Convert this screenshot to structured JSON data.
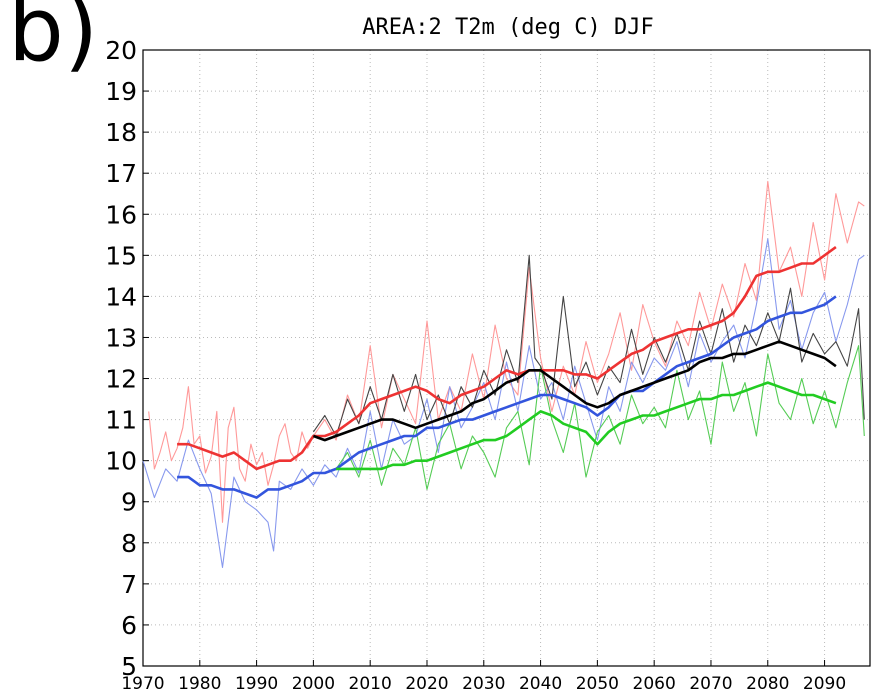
{
  "panel_label": "b)",
  "chart_data": {
    "type": "line",
    "title": "AREA:2 T2m (deg C) DJF",
    "xlabel": "",
    "ylabel": "",
    "xlim": [
      1970,
      2098
    ],
    "ylim": [
      5,
      20
    ],
    "grid": true,
    "xticks": [
      1970,
      1980,
      1990,
      2000,
      2010,
      2020,
      2030,
      2040,
      2050,
      2060,
      2070,
      2080,
      2090
    ],
    "yticks": [
      5,
      6,
      7,
      8,
      9,
      10,
      11,
      12,
      13,
      14,
      15,
      16,
      17,
      18,
      19,
      20
    ],
    "series": [
      {
        "color": "#ff9999",
        "style": "annual",
        "x": [
          1971,
          1972,
          1973,
          1974,
          1975,
          1976,
          1977,
          1978,
          1979,
          1980,
          1981,
          1982,
          1983,
          1984,
          1985,
          1986,
          1987,
          1988,
          1989,
          1990,
          1991,
          1992,
          1993,
          1994,
          1995,
          1996,
          1997,
          1998,
          1999,
          2000,
          2002,
          2004,
          2006,
          2008,
          2010,
          2012,
          2014,
          2016,
          2018,
          2020,
          2022,
          2024,
          2026,
          2028,
          2030,
          2032,
          2034,
          2036,
          2038,
          2040,
          2042,
          2044,
          2046,
          2048,
          2050,
          2052,
          2054,
          2056,
          2058,
          2060,
          2062,
          2064,
          2066,
          2068,
          2070,
          2072,
          2074,
          2076,
          2078,
          2080,
          2082,
          2084,
          2086,
          2088,
          2090,
          2092,
          2094,
          2096,
          2097
        ],
        "y": [
          11.2,
          9.8,
          10.2,
          10.7,
          10.0,
          10.3,
          10.8,
          11.8,
          10.4,
          10.6,
          9.7,
          10.1,
          11.2,
          8.5,
          10.8,
          11.3,
          9.8,
          9.5,
          10.4,
          9.9,
          10.2,
          9.4,
          9.9,
          10.6,
          10.9,
          10.2,
          10.0,
          10.7,
          10.3,
          10.6,
          11.0,
          10.5,
          11.6,
          10.9,
          12.8,
          10.8,
          12.1,
          11.5,
          10.9,
          13.4,
          11.0,
          11.8,
          11.2,
          12.6,
          11.5,
          13.3,
          12.0,
          11.6,
          14.7,
          12.5,
          11.2,
          12.3,
          11.6,
          12.9,
          11.9,
          12.6,
          13.6,
          12.2,
          13.8,
          12.9,
          12.3,
          13.4,
          12.8,
          14.1,
          13.2,
          14.3,
          13.5,
          14.8,
          13.9,
          16.8,
          14.6,
          15.2,
          14.0,
          15.8,
          14.4,
          16.5,
          15.3,
          16.3,
          16.2
        ]
      },
      {
        "color": "#8899ee",
        "style": "annual",
        "x": [
          1970,
          1972,
          1974,
          1976,
          1978,
          1980,
          1982,
          1984,
          1986,
          1988,
          1990,
          1992,
          1993,
          1994,
          1996,
          1998,
          2000,
          2002,
          2004,
          2006,
          2008,
          2010,
          2012,
          2014,
          2016,
          2018,
          2020,
          2022,
          2024,
          2026,
          2028,
          2030,
          2032,
          2034,
          2036,
          2038,
          2040,
          2042,
          2044,
          2046,
          2048,
          2050,
          2052,
          2054,
          2056,
          2058,
          2060,
          2062,
          2064,
          2066,
          2068,
          2070,
          2072,
          2074,
          2076,
          2078,
          2080,
          2082,
          2084,
          2086,
          2088,
          2090,
          2092,
          2094,
          2096,
          2097
        ],
        "y": [
          10.0,
          9.1,
          9.8,
          9.5,
          10.5,
          9.8,
          9.2,
          7.4,
          9.6,
          9.0,
          8.8,
          8.5,
          7.8,
          9.5,
          9.3,
          9.8,
          9.4,
          9.9,
          9.6,
          10.3,
          9.7,
          11.2,
          9.8,
          11.0,
          10.4,
          10.6,
          11.5,
          10.2,
          11.8,
          10.8,
          11.3,
          11.9,
          11.0,
          12.4,
          11.2,
          12.8,
          11.5,
          11.9,
          11.0,
          12.3,
          11.4,
          10.5,
          11.8,
          11.2,
          12.4,
          11.9,
          12.5,
          12.2,
          12.9,
          11.8,
          13.1,
          12.4,
          12.9,
          13.3,
          12.5,
          13.8,
          15.4,
          13.2,
          13.9,
          12.7,
          13.6,
          14.1,
          12.9,
          13.8,
          14.9,
          15.0
        ]
      },
      {
        "color": "#55cc55",
        "style": "annual",
        "x": [
          2004,
          2006,
          2008,
          2010,
          2012,
          2014,
          2016,
          2018,
          2020,
          2022,
          2024,
          2026,
          2028,
          2030,
          2032,
          2034,
          2036,
          2038,
          2040,
          2042,
          2044,
          2046,
          2048,
          2050,
          2052,
          2054,
          2056,
          2058,
          2060,
          2062,
          2064,
          2066,
          2068,
          2070,
          2072,
          2074,
          2076,
          2078,
          2080,
          2082,
          2084,
          2086,
          2088,
          2090,
          2092,
          2094,
          2096,
          2097
        ],
        "y": [
          9.8,
          10.2,
          9.6,
          10.5,
          9.4,
          10.3,
          9.9,
          10.8,
          9.3,
          10.4,
          10.9,
          9.8,
          10.6,
          10.2,
          9.6,
          10.8,
          11.2,
          9.9,
          12.3,
          11.0,
          10.2,
          11.4,
          9.6,
          10.7,
          11.1,
          10.4,
          11.6,
          10.9,
          11.3,
          10.8,
          12.2,
          11.0,
          11.7,
          10.4,
          12.4,
          11.2,
          11.9,
          10.6,
          12.6,
          11.4,
          11.0,
          12.0,
          10.9,
          11.7,
          10.8,
          11.9,
          12.8,
          10.6
        ]
      },
      {
        "color": "#444444",
        "style": "annual",
        "x": [
          2000,
          2002,
          2004,
          2006,
          2008,
          2010,
          2012,
          2014,
          2016,
          2018,
          2020,
          2022,
          2024,
          2026,
          2028,
          2030,
          2032,
          2034,
          2036,
          2038,
          2039,
          2040,
          2042,
          2044,
          2046,
          2048,
          2050,
          2052,
          2054,
          2056,
          2058,
          2060,
          2062,
          2064,
          2066,
          2068,
          2070,
          2072,
          2074,
          2076,
          2078,
          2080,
          2082,
          2084,
          2086,
          2088,
          2090,
          2092,
          2094,
          2096,
          2097
        ],
        "y": [
          10.7,
          11.1,
          10.6,
          11.5,
          10.9,
          11.8,
          11.0,
          12.1,
          11.2,
          12.1,
          11.0,
          11.6,
          10.9,
          11.8,
          11.3,
          12.2,
          11.6,
          12.7,
          11.9,
          15.0,
          12.5,
          12.3,
          11.5,
          14.0,
          11.8,
          12.4,
          11.6,
          12.3,
          11.9,
          13.2,
          12.1,
          13.0,
          12.4,
          13.1,
          12.2,
          13.4,
          12.6,
          13.7,
          12.4,
          13.3,
          12.8,
          13.6,
          12.9,
          14.2,
          12.4,
          13.1,
          12.6,
          12.9,
          12.3,
          13.7,
          11.0
        ]
      },
      {
        "color": "#ee3333",
        "style": "smoothed",
        "x": [
          1976,
          1978,
          1980,
          1982,
          1984,
          1986,
          1988,
          1990,
          1992,
          1994,
          1996,
          1998,
          2000,
          2002,
          2004,
          2006,
          2008,
          2010,
          2012,
          2014,
          2016,
          2018,
          2020,
          2022,
          2024,
          2026,
          2028,
          2030,
          2032,
          2034,
          2036,
          2038,
          2040,
          2042,
          2044,
          2046,
          2048,
          2050,
          2052,
          2054,
          2056,
          2058,
          2060,
          2062,
          2064,
          2066,
          2068,
          2070,
          2072,
          2074,
          2076,
          2078,
          2080,
          2082,
          2084,
          2086,
          2088,
          2090,
          2092
        ],
        "y": [
          10.4,
          10.4,
          10.3,
          10.2,
          10.1,
          10.2,
          10.0,
          9.8,
          9.9,
          10.0,
          10.0,
          10.2,
          10.6,
          10.6,
          10.7,
          10.9,
          11.1,
          11.4,
          11.5,
          11.6,
          11.7,
          11.8,
          11.7,
          11.5,
          11.4,
          11.6,
          11.7,
          11.8,
          12.0,
          12.2,
          12.1,
          12.2,
          12.2,
          12.2,
          12.2,
          12.1,
          12.1,
          12.0,
          12.2,
          12.4,
          12.6,
          12.7,
          12.9,
          13.0,
          13.1,
          13.2,
          13.2,
          13.3,
          13.4,
          13.6,
          14.0,
          14.5,
          14.6,
          14.6,
          14.7,
          14.8,
          14.8,
          15.0,
          15.2
        ]
      },
      {
        "color": "#3355dd",
        "style": "smoothed",
        "x": [
          1976,
          1978,
          1980,
          1982,
          1984,
          1986,
          1988,
          1990,
          1992,
          1994,
          1996,
          1998,
          2000,
          2002,
          2004,
          2006,
          2008,
          2010,
          2012,
          2014,
          2016,
          2018,
          2020,
          2022,
          2024,
          2026,
          2028,
          2030,
          2032,
          2034,
          2036,
          2038,
          2040,
          2042,
          2044,
          2046,
          2048,
          2050,
          2052,
          2054,
          2056,
          2058,
          2060,
          2062,
          2064,
          2066,
          2068,
          2070,
          2072,
          2074,
          2076,
          2078,
          2080,
          2082,
          2084,
          2086,
          2088,
          2090,
          2092
        ],
        "y": [
          9.6,
          9.6,
          9.4,
          9.4,
          9.3,
          9.3,
          9.2,
          9.1,
          9.3,
          9.3,
          9.4,
          9.5,
          9.7,
          9.7,
          9.8,
          10.0,
          10.2,
          10.3,
          10.4,
          10.5,
          10.6,
          10.6,
          10.8,
          10.8,
          10.9,
          11.0,
          11.0,
          11.1,
          11.2,
          11.3,
          11.4,
          11.5,
          11.6,
          11.6,
          11.5,
          11.4,
          11.3,
          11.1,
          11.3,
          11.6,
          11.7,
          11.7,
          11.9,
          12.1,
          12.3,
          12.4,
          12.5,
          12.6,
          12.8,
          13.0,
          13.1,
          13.2,
          13.4,
          13.5,
          13.6,
          13.6,
          13.7,
          13.8,
          14.0
        ]
      },
      {
        "color": "#22cc22",
        "style": "smoothed",
        "x": [
          2004,
          2006,
          2008,
          2010,
          2012,
          2014,
          2016,
          2018,
          2020,
          2022,
          2024,
          2026,
          2028,
          2030,
          2032,
          2034,
          2036,
          2038,
          2040,
          2042,
          2044,
          2046,
          2048,
          2050,
          2052,
          2054,
          2056,
          2058,
          2060,
          2062,
          2064,
          2066,
          2068,
          2070,
          2072,
          2074,
          2076,
          2078,
          2080,
          2082,
          2084,
          2086,
          2088,
          2090,
          2092
        ],
        "y": [
          9.8,
          9.8,
          9.8,
          9.8,
          9.8,
          9.9,
          9.9,
          10.0,
          10.0,
          10.1,
          10.2,
          10.3,
          10.4,
          10.5,
          10.5,
          10.6,
          10.8,
          11.0,
          11.2,
          11.1,
          10.9,
          10.8,
          10.7,
          10.4,
          10.7,
          10.9,
          11.0,
          11.1,
          11.1,
          11.2,
          11.3,
          11.4,
          11.5,
          11.5,
          11.6,
          11.6,
          11.7,
          11.8,
          11.9,
          11.8,
          11.7,
          11.6,
          11.6,
          11.5,
          11.4
        ]
      },
      {
        "color": "#000000",
        "style": "smoothed",
        "x": [
          2000,
          2002,
          2004,
          2006,
          2008,
          2010,
          2012,
          2014,
          2016,
          2018,
          2020,
          2022,
          2024,
          2026,
          2028,
          2030,
          2032,
          2034,
          2036,
          2038,
          2040,
          2042,
          2044,
          2046,
          2048,
          2050,
          2052,
          2054,
          2056,
          2058,
          2060,
          2062,
          2064,
          2066,
          2068,
          2070,
          2072,
          2074,
          2076,
          2078,
          2080,
          2082,
          2084,
          2086,
          2088,
          2090,
          2092
        ],
        "y": [
          10.6,
          10.5,
          10.6,
          10.7,
          10.8,
          10.9,
          11.0,
          11.0,
          10.9,
          10.8,
          10.9,
          11.0,
          11.1,
          11.2,
          11.4,
          11.5,
          11.7,
          11.9,
          12.0,
          12.2,
          12.2,
          12.0,
          11.8,
          11.6,
          11.4,
          11.3,
          11.4,
          11.6,
          11.7,
          11.8,
          11.9,
          12.0,
          12.1,
          12.2,
          12.4,
          12.5,
          12.5,
          12.6,
          12.6,
          12.7,
          12.8,
          12.9,
          12.8,
          12.7,
          12.6,
          12.5,
          12.3
        ]
      }
    ]
  }
}
